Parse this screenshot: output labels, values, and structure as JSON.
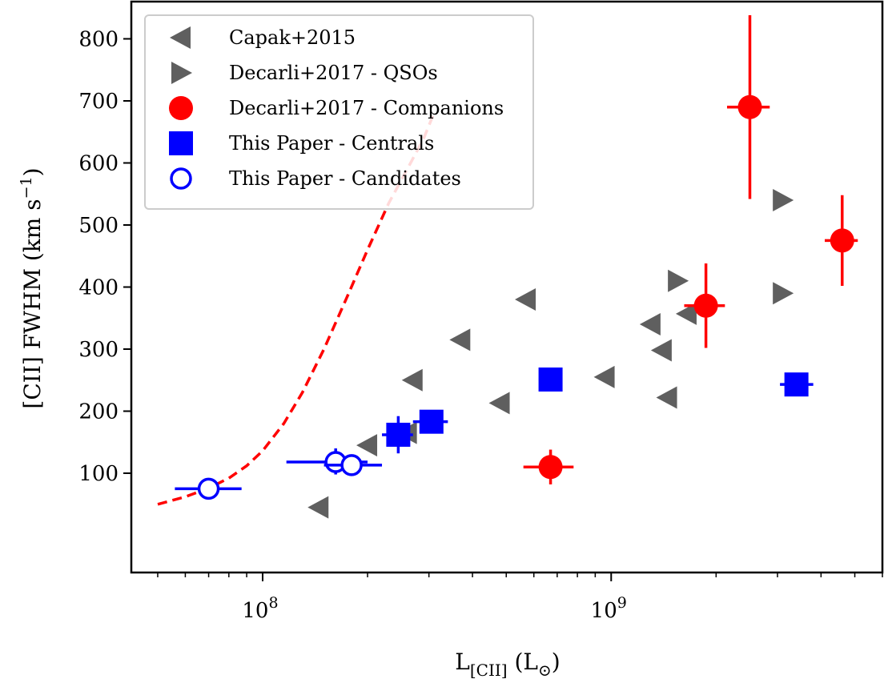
{
  "chart_data": {
    "type": "scatter",
    "title": "",
    "xlabel": "L",
    "xlabel_sub": "[CII]",
    "xlabel_unit_open": " (L",
    "xlabel_unit_sub": "⊙",
    "xlabel_unit_close": ")",
    "ylabel": "[CII] FWHM (km s",
    "ylabel_sup": "−1",
    "ylabel_close": ")",
    "x_scale": "log",
    "xlim": [
      42000000.0,
      6000000000.0
    ],
    "ylim": [
      -60,
      860
    ],
    "x_major_ticks": [
      {
        "value": 100000000.0,
        "base": "10",
        "exp": "8"
      },
      {
        "value": 1000000000.0,
        "base": "10",
        "exp": "9"
      }
    ],
    "y_ticks": [
      100,
      200,
      300,
      400,
      500,
      600,
      700,
      800
    ],
    "grid": false,
    "legend_position": "top-left",
    "series": [
      {
        "name": "Capak+2015",
        "marker": "triangle-left",
        "color": "#5f5f5f",
        "points": [
          {
            "x": 145000000.0,
            "y": 45
          },
          {
            "x": 200000000.0,
            "y": 145
          },
          {
            "x": 260000000.0,
            "y": 165
          },
          {
            "x": 270000000.0,
            "y": 250
          },
          {
            "x": 370000000.0,
            "y": 315
          },
          {
            "x": 480000000.0,
            "y": 213
          },
          {
            "x": 570000000.0,
            "y": 380
          },
          {
            "x": 960000000.0,
            "y": 255
          },
          {
            "x": 1300000000.0,
            "y": 340
          },
          {
            "x": 1400000000.0,
            "y": 298
          },
          {
            "x": 1450000000.0,
            "y": 222
          },
          {
            "x": 1650000000.0,
            "y": 357
          }
        ]
      },
      {
        "name": "Decarli+2017 - QSOs",
        "marker": "triangle-right",
        "color": "#5f5f5f",
        "points": [
          {
            "x": 1550000000.0,
            "y": 410
          },
          {
            "x": 3100000000.0,
            "y": 540
          },
          {
            "x": 3100000000.0,
            "y": 390
          }
        ]
      },
      {
        "name": "Decarli+2017 - Companions",
        "marker": "circle",
        "color": "#ff0000",
        "points": [
          {
            "x": 2500000000.0,
            "y": 690,
            "xlo": 2150000000.0,
            "xhi": 2850000000.0,
            "ylo": 542,
            "yhi": 838
          },
          {
            "x": 4600000000.0,
            "y": 475,
            "xlo": 4100000000.0,
            "xhi": 5100000000.0,
            "ylo": 402,
            "yhi": 548
          },
          {
            "x": 1870000000.0,
            "y": 370,
            "xlo": 1620000000.0,
            "xhi": 2120000000.0,
            "ylo": 302,
            "yhi": 438
          },
          {
            "x": 670000000.0,
            "y": 110,
            "xlo": 560000000.0,
            "xhi": 780000000.0,
            "ylo": 82,
            "yhi": 138
          }
        ]
      },
      {
        "name": "This Paper - Centrals",
        "marker": "square",
        "color": "#0000ff",
        "points": [
          {
            "x": 245000000.0,
            "y": 162,
            "xlo": 220000000.0,
            "xhi": 270000000.0,
            "ylo": 132,
            "yhi": 192
          },
          {
            "x": 305000000.0,
            "y": 183,
            "xlo": 270000000.0,
            "xhi": 340000000.0,
            "ylo": 170,
            "yhi": 196
          },
          {
            "x": 670000000.0,
            "y": 251,
            "xlo": 620000000.0,
            "xhi": 720000000.0,
            "ylo": 243,
            "yhi": 259
          },
          {
            "x": 3400000000.0,
            "y": 243,
            "xlo": 3050000000.0,
            "xhi": 3800000000.0,
            "ylo": 235,
            "yhi": 251
          }
        ]
      },
      {
        "name": "This Paper - Candidates",
        "marker": "open-circle",
        "color": "#0000ff",
        "points": [
          {
            "x": 70000000.0,
            "y": 75,
            "xlo": 56000000.0,
            "xhi": 87000000.0,
            "ylo": 70,
            "yhi": 80
          },
          {
            "x": 162000000.0,
            "y": 118,
            "xlo": 117000000.0,
            "xhi": 200000000.0,
            "ylo": 98,
            "yhi": 140
          },
          {
            "x": 180000000.0,
            "y": 113,
            "xlo": 150000000.0,
            "xhi": 220000000.0,
            "ylo": 103,
            "yhi": 123
          }
        ]
      }
    ],
    "curve": {
      "color": "#ff0000",
      "style": "dashed",
      "points": [
        {
          "x": 50000000.0,
          "y": 50
        },
        {
          "x": 60000000.0,
          "y": 62
        },
        {
          "x": 70000000.0,
          "y": 76
        },
        {
          "x": 80000000.0,
          "y": 92
        },
        {
          "x": 90000000.0,
          "y": 112
        },
        {
          "x": 100000000.0,
          "y": 136
        },
        {
          "x": 115000000.0,
          "y": 180
        },
        {
          "x": 130000000.0,
          "y": 230
        },
        {
          "x": 150000000.0,
          "y": 300
        },
        {
          "x": 175000000.0,
          "y": 385
        },
        {
          "x": 200000000.0,
          "y": 460
        },
        {
          "x": 230000000.0,
          "y": 535
        },
        {
          "x": 260000000.0,
          "y": 590
        },
        {
          "x": 290000000.0,
          "y": 640
        },
        {
          "x": 310000000.0,
          "y": 680
        }
      ]
    }
  }
}
